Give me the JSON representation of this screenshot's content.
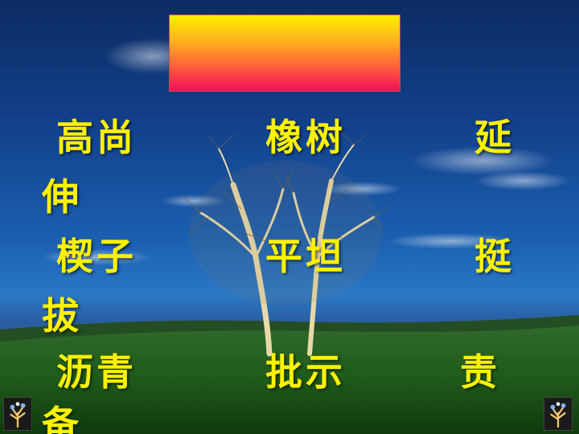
{
  "title_box": {
    "text": ""
  },
  "words": [
    "高尚",
    "橡树",
    "延伸",
    "楔子",
    "平坦",
    "挺拔",
    "沥青",
    "批示",
    "责备"
  ],
  "colors": {
    "word_text": "#fff200",
    "sky_top": "#0d2c63",
    "sky_horizon": "#2a78c6",
    "grass": "#2e6b1f",
    "title_gradient_top": "#ffef00",
    "title_gradient_bottom": "#f0105a"
  },
  "icons": {
    "corner_left": "tree-logo-icon",
    "corner_right": "tree-logo-icon"
  }
}
